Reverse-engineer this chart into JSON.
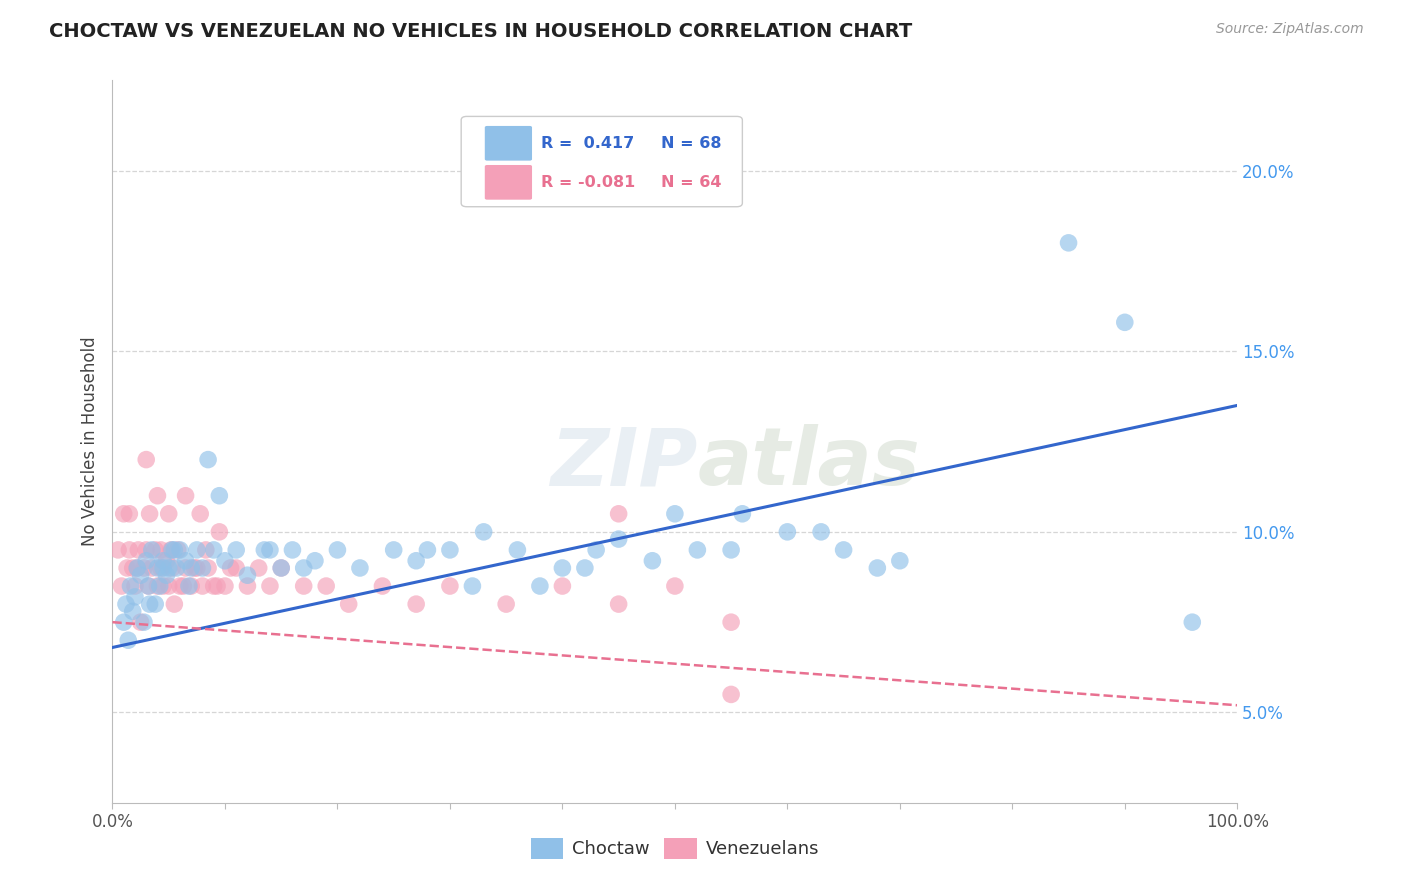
{
  "title": "CHOCTAW VS VENEZUELAN NO VEHICLES IN HOUSEHOLD CORRELATION CHART",
  "source": "Source: ZipAtlas.com",
  "ylabel": "No Vehicles in Household",
  "choctaw_color": "#90C0E8",
  "venezuelan_color": "#F4A0B8",
  "choctaw_line_color": "#3366CC",
  "venezuelan_line_color": "#E87090",
  "background_color": "#FFFFFF",
  "xmin": 0.0,
  "xmax": 100.0,
  "ymin": 2.5,
  "ymax": 22.5,
  "yticks": [
    5.0,
    10.0,
    15.0,
    20.0
  ],
  "ytick_labels": [
    "5.0%",
    "10.0%",
    "15.0%",
    "20.0%"
  ],
  "choctaw_line_x": [
    0,
    100
  ],
  "choctaw_line_y": [
    6.8,
    13.5
  ],
  "venezuelan_line_x": [
    0,
    100
  ],
  "venezuelan_line_y": [
    7.5,
    5.2
  ],
  "legend_r1": "R =  0.417",
  "legend_n1": "N = 68",
  "legend_r2": "R = -0.081",
  "legend_n2": "N = 64",
  "watermark": "ZIPatlas",
  "choctaw_x": [
    1.0,
    1.2,
    1.4,
    1.6,
    1.8,
    2.0,
    2.2,
    2.5,
    2.8,
    3.0,
    3.2,
    3.5,
    3.8,
    4.0,
    4.2,
    4.5,
    4.8,
    5.0,
    5.3,
    5.7,
    6.0,
    6.5,
    7.0,
    7.5,
    8.0,
    9.0,
    10.0,
    11.0,
    12.0,
    13.5,
    15.0,
    16.0,
    18.0,
    20.0,
    22.0,
    25.0,
    27.0,
    30.0,
    33.0,
    36.0,
    40.0,
    45.0,
    50.0,
    55.0,
    60.0,
    48.0,
    52.0,
    63.0,
    65.0,
    70.0,
    38.0,
    42.0,
    28.0,
    32.0,
    8.5,
    9.5,
    14.0,
    17.0,
    43.0,
    56.0,
    68.0,
    85.0,
    90.0,
    96.0,
    3.3,
    6.8,
    4.5,
    5.5
  ],
  "choctaw_y": [
    7.5,
    8.0,
    7.0,
    8.5,
    7.8,
    8.2,
    9.0,
    8.8,
    7.5,
    9.2,
    8.5,
    9.5,
    8.0,
    9.0,
    8.5,
    9.2,
    8.8,
    9.0,
    9.5,
    9.0,
    9.5,
    9.2,
    9.0,
    9.5,
    9.0,
    9.5,
    9.2,
    9.5,
    8.8,
    9.5,
    9.0,
    9.5,
    9.2,
    9.5,
    9.0,
    9.5,
    9.2,
    9.5,
    10.0,
    9.5,
    9.0,
    9.8,
    10.5,
    9.5,
    10.0,
    9.2,
    9.5,
    10.0,
    9.5,
    9.2,
    8.5,
    9.0,
    9.5,
    8.5,
    12.0,
    11.0,
    9.5,
    9.0,
    9.5,
    10.5,
    9.0,
    18.0,
    15.8,
    7.5,
    8.0,
    8.5,
    9.0,
    9.5
  ],
  "venezuelan_x": [
    0.5,
    0.8,
    1.0,
    1.3,
    1.5,
    1.8,
    2.0,
    2.2,
    2.5,
    2.8,
    3.0,
    3.2,
    3.5,
    3.8,
    4.0,
    4.3,
    4.5,
    4.8,
    5.0,
    5.2,
    5.5,
    5.8,
    6.0,
    6.5,
    7.0,
    7.5,
    8.0,
    8.5,
    9.0,
    10.0,
    11.0,
    12.0,
    13.0,
    14.0,
    15.0,
    17.0,
    19.0,
    21.0,
    24.0,
    27.0,
    30.0,
    35.0,
    40.0,
    45.0,
    50.0,
    55.0,
    3.3,
    4.3,
    5.3,
    6.3,
    7.3,
    8.3,
    9.3,
    10.5,
    2.3,
    1.5,
    3.0,
    4.0,
    5.0,
    6.5,
    7.8,
    9.5,
    45.0,
    55.0
  ],
  "venezuelan_y": [
    9.5,
    8.5,
    10.5,
    9.0,
    9.5,
    9.0,
    8.5,
    9.0,
    7.5,
    9.0,
    9.5,
    8.5,
    9.0,
    9.5,
    8.5,
    9.0,
    8.5,
    9.2,
    8.5,
    9.5,
    8.0,
    9.5,
    8.5,
    9.0,
    8.5,
    9.0,
    8.5,
    9.0,
    8.5,
    8.5,
    9.0,
    8.5,
    9.0,
    8.5,
    9.0,
    8.5,
    8.5,
    8.0,
    8.5,
    8.0,
    8.5,
    8.0,
    8.5,
    8.0,
    8.5,
    7.5,
    10.5,
    9.5,
    9.0,
    8.5,
    9.0,
    9.5,
    8.5,
    9.0,
    9.5,
    10.5,
    12.0,
    11.0,
    10.5,
    11.0,
    10.5,
    10.0,
    10.5,
    5.5
  ]
}
